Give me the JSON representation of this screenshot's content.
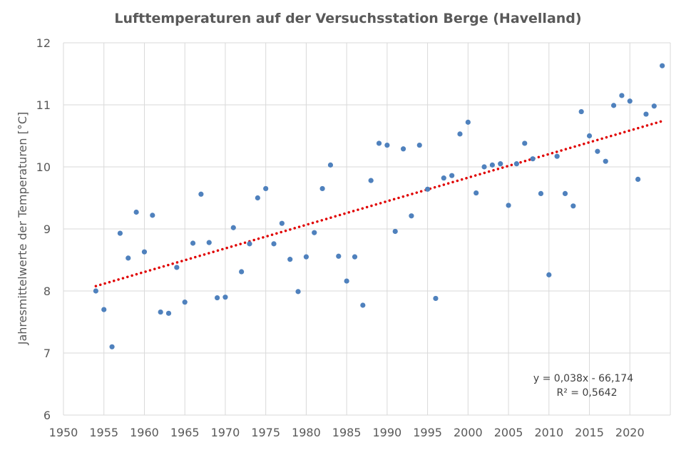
{
  "chart_data": {
    "type": "scatter",
    "title": "Lufttemperaturen auf der Versuchsstation Berge (Havelland)",
    "xlabel": "",
    "ylabel": "Jahresmittelwerte der Temperaturen [°C]",
    "xlim": [
      1950,
      2025
    ],
    "ylim": [
      6,
      12
    ],
    "x_ticks": [
      "1950",
      "1955",
      "1960",
      "1965",
      "1970",
      "1975",
      "1980",
      "1985",
      "1990",
      "1995",
      "2000",
      "2005",
      "2010",
      "2015",
      "2020"
    ],
    "y_ticks": [
      "6",
      "7",
      "8",
      "9",
      "10",
      "11",
      "12"
    ],
    "grid": true,
    "series": [
      {
        "color": "#4f81bd",
        "points": [
          [
            1954,
            8.0
          ],
          [
            1955,
            7.7
          ],
          [
            1956,
            7.1
          ],
          [
            1957,
            8.93
          ],
          [
            1958,
            8.53
          ],
          [
            1959,
            9.27
          ],
          [
            1960,
            8.63
          ],
          [
            1961,
            9.22
          ],
          [
            1962,
            7.66
          ],
          [
            1963,
            7.64
          ],
          [
            1964,
            8.38
          ],
          [
            1965,
            7.82
          ],
          [
            1966,
            8.77
          ],
          [
            1967,
            9.56
          ],
          [
            1968,
            8.78
          ],
          [
            1969,
            7.89
          ],
          [
            1970,
            7.9
          ],
          [
            1971,
            9.02
          ],
          [
            1972,
            8.31
          ],
          [
            1973,
            8.76
          ],
          [
            1974,
            9.5
          ],
          [
            1975,
            9.65
          ],
          [
            1976,
            8.76
          ],
          [
            1977,
            9.09
          ],
          [
            1978,
            8.51
          ],
          [
            1979,
            7.99
          ],
          [
            1980,
            8.55
          ],
          [
            1981,
            8.94
          ],
          [
            1982,
            9.65
          ],
          [
            1983,
            10.03
          ],
          [
            1984,
            8.56
          ],
          [
            1985,
            8.16
          ],
          [
            1986,
            8.55
          ],
          [
            1987,
            7.77
          ],
          [
            1988,
            9.78
          ],
          [
            1989,
            10.38
          ],
          [
            1990,
            10.35
          ],
          [
            1991,
            8.96
          ],
          [
            1992,
            10.29
          ],
          [
            1993,
            9.21
          ],
          [
            1994,
            10.35
          ],
          [
            1995,
            9.64
          ],
          [
            1996,
            7.88
          ],
          [
            1997,
            9.82
          ],
          [
            1998,
            9.86
          ],
          [
            1999,
            10.53
          ],
          [
            2000,
            10.72
          ],
          [
            2001,
            9.58
          ],
          [
            2002,
            10.0
          ],
          [
            2003,
            10.03
          ],
          [
            2004,
            10.05
          ],
          [
            2005,
            9.38
          ],
          [
            2006,
            10.05
          ],
          [
            2007,
            10.38
          ],
          [
            2008,
            10.13
          ],
          [
            2009,
            9.57
          ],
          [
            2010,
            8.26
          ],
          [
            2011,
            10.17
          ],
          [
            2012,
            9.57
          ],
          [
            2013,
            9.37
          ],
          [
            2014,
            10.89
          ],
          [
            2015,
            10.5
          ],
          [
            2016,
            10.25
          ],
          [
            2017,
            10.09
          ],
          [
            2018,
            10.99
          ],
          [
            2019,
            11.15
          ],
          [
            2020,
            11.06
          ],
          [
            2021,
            9.8
          ],
          [
            2022,
            10.85
          ],
          [
            2023,
            10.98
          ],
          [
            2024,
            11.63
          ]
        ]
      }
    ],
    "trendline": {
      "type": "linear",
      "slope": 0.038,
      "intercept": -66.174,
      "x_range": [
        1954,
        2024
      ],
      "color": "#e00000",
      "style": "dotted"
    },
    "annotations": {
      "equation": "y = 0,038x - 66,174",
      "r_squared": "R² = 0,5642"
    }
  }
}
